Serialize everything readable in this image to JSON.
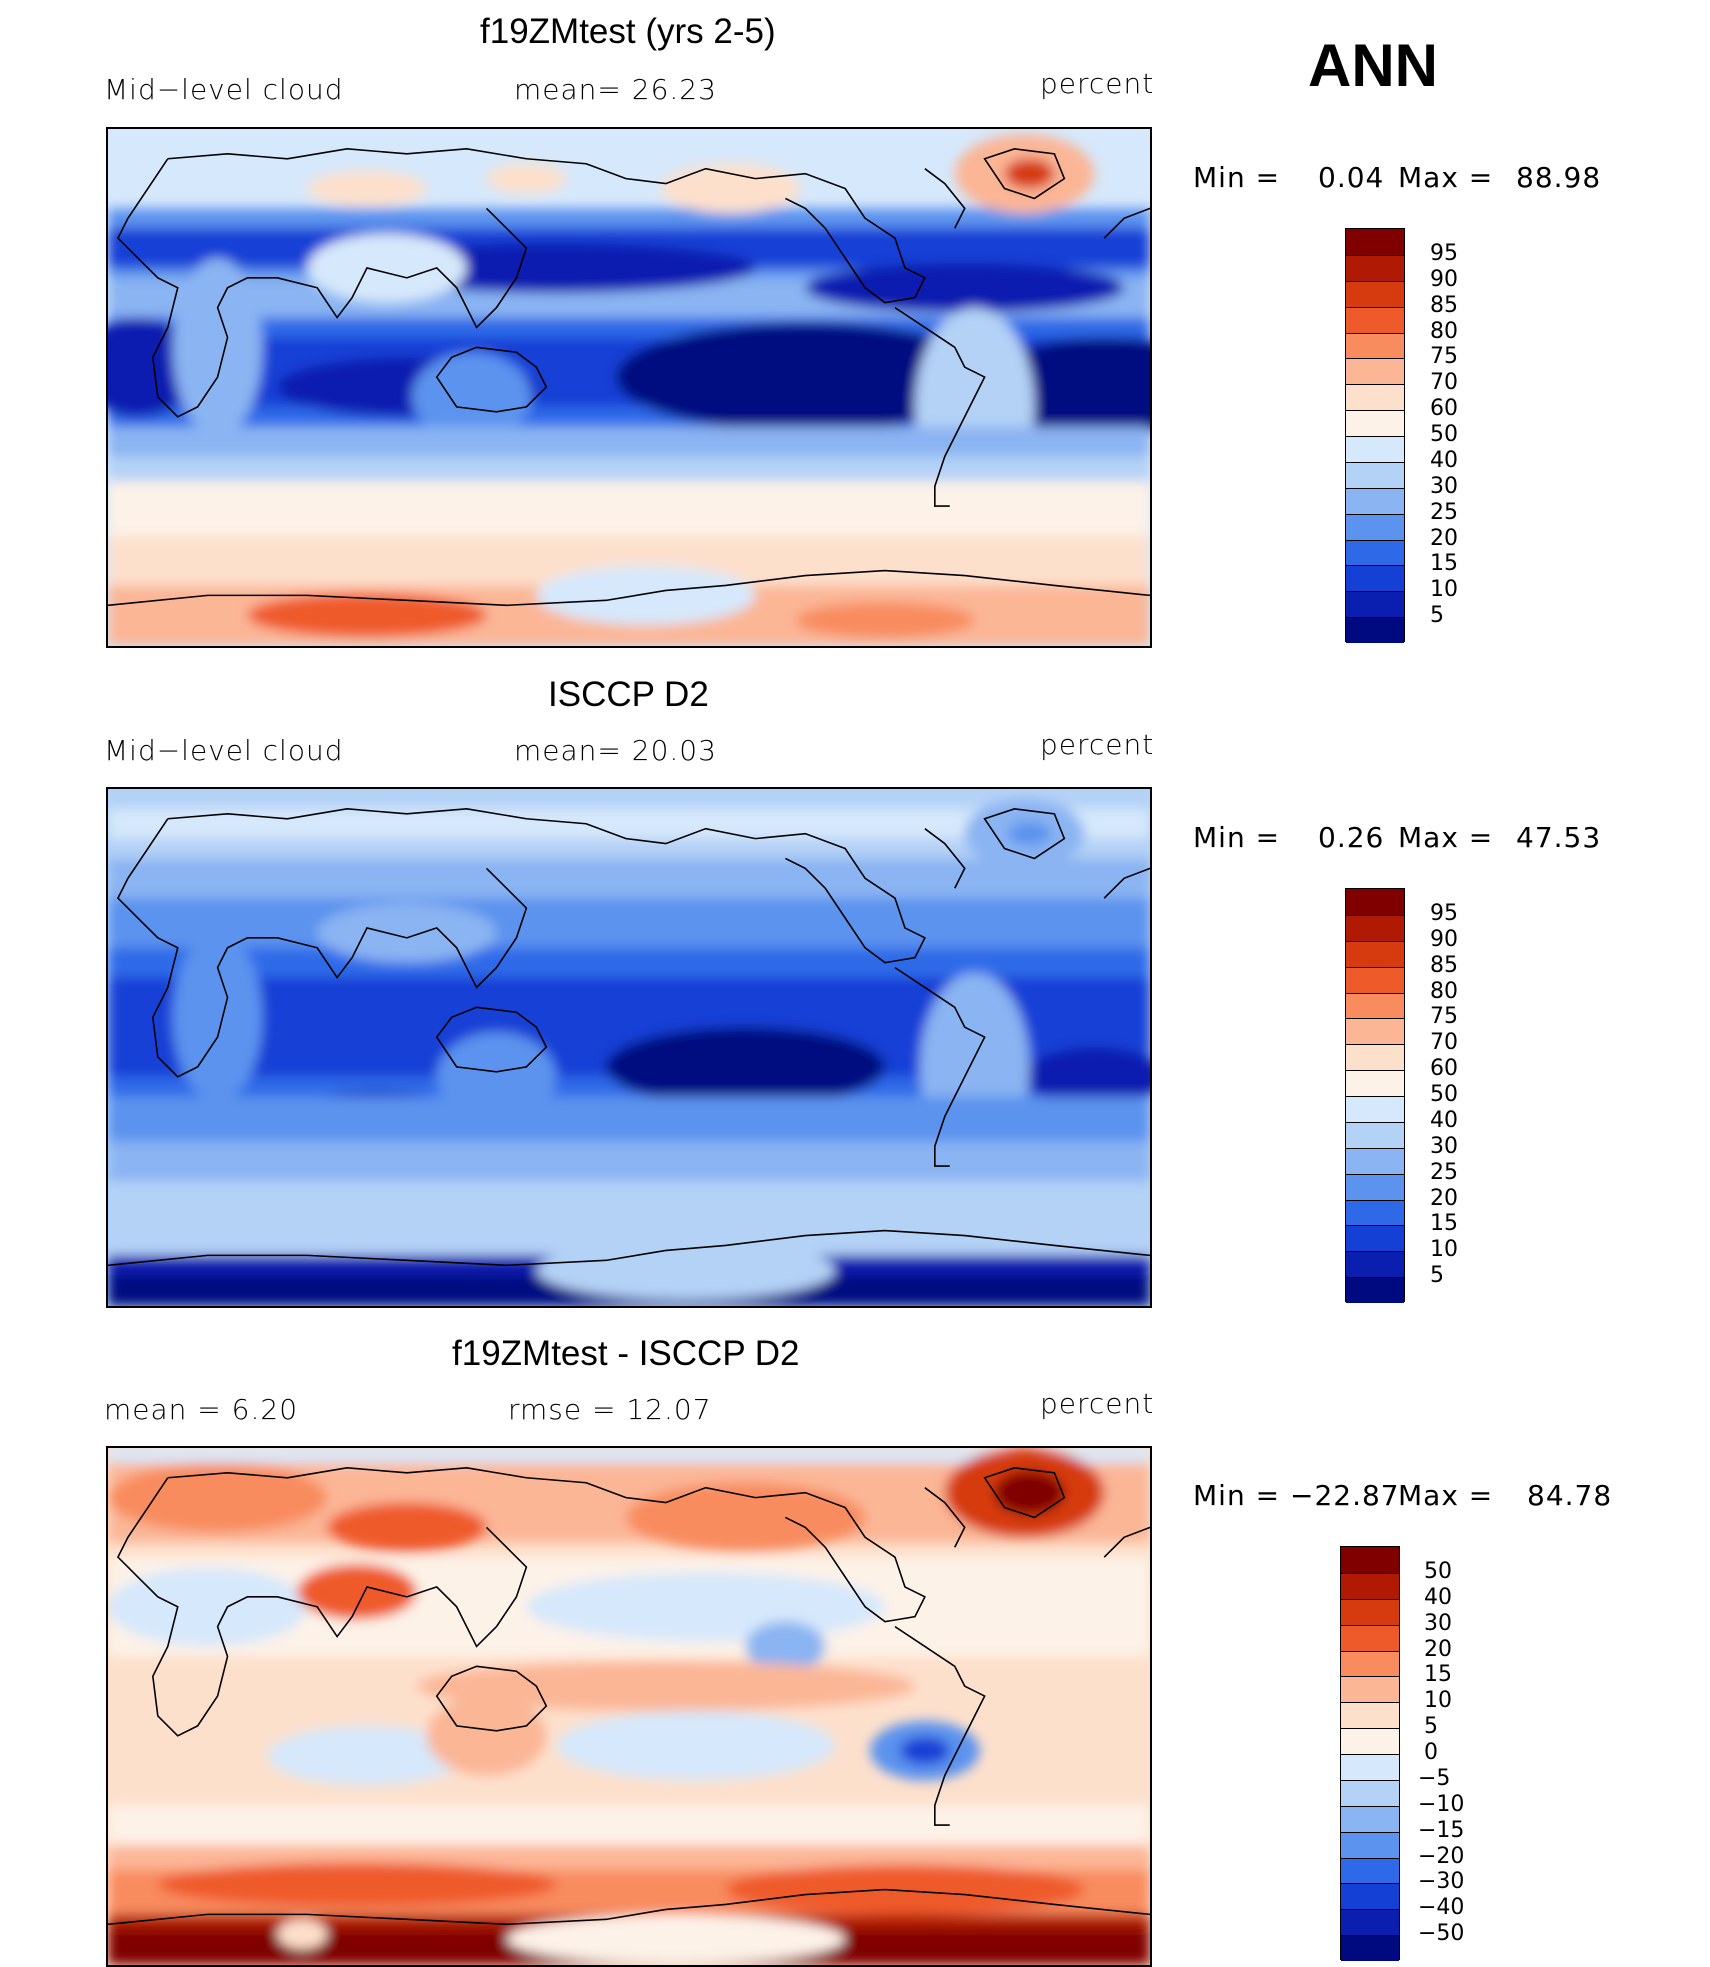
{
  "season": "ANN",
  "panels": [
    {
      "title": "f19ZMtest (yrs 2-5)",
      "left_label": "Mid−level cloud",
      "mid_label": "mean=   26.23",
      "units": "percent",
      "min_label": "Min  =",
      "min_value": "0.04",
      "max_label": "Max  =",
      "max_value": "88.98",
      "levels": [
        "95",
        "90",
        "85",
        "80",
        "75",
        "70",
        "60",
        "50",
        "40",
        "30",
        "25",
        "20",
        "15",
        "10",
        "5"
      ],
      "colors": [
        "#800000",
        "#b01a04",
        "#d63a0f",
        "#ef5a2a",
        "#f88c5e",
        "#fbb696",
        "#fde0cc",
        "#fdf2e8",
        "#d6e8fb",
        "#b4d1f6",
        "#8ab4f2",
        "#5c93ee",
        "#2e6ae8",
        "#1440d6",
        "#0a1fb0",
        "#000a80"
      ]
    },
    {
      "title": "ISCCP D2",
      "left_label": "Mid−level cloud",
      "mid_label": "mean=   20.03",
      "units": "percent",
      "min_label": "Min  =",
      "min_value": "0.26",
      "max_label": "Max  =",
      "max_value": "47.53",
      "levels": [
        "95",
        "90",
        "85",
        "80",
        "75",
        "70",
        "60",
        "50",
        "40",
        "30",
        "25",
        "20",
        "15",
        "10",
        "5"
      ],
      "colors": [
        "#800000",
        "#b01a04",
        "#d63a0f",
        "#ef5a2a",
        "#f88c5e",
        "#fbb696",
        "#fde0cc",
        "#fdf2e8",
        "#d6e8fb",
        "#b4d1f6",
        "#8ab4f2",
        "#5c93ee",
        "#2e6ae8",
        "#1440d6",
        "#0a1fb0",
        "#000a80"
      ]
    },
    {
      "title": "f19ZMtest - ISCCP D2",
      "left_label": "mean  =     6.20",
      "mid_label": "rmse  =    12.07",
      "units": "percent",
      "min_label": "Min  =",
      "min_value": "−22.87",
      "max_label": "Max  =",
      "max_value": "84.78",
      "levels": [
        "50",
        "40",
        "30",
        "20",
        "15",
        "10",
        "5",
        "0",
        "−5",
        "−10",
        "−15",
        "−20",
        "−30",
        "−40",
        "−50"
      ],
      "colors": [
        "#800000",
        "#b01a04",
        "#d63a0f",
        "#ef5a2a",
        "#f88c5e",
        "#fbb696",
        "#fde0cc",
        "#fdf2e8",
        "#d6e8fb",
        "#b4d1f6",
        "#8ab4f2",
        "#5c93ee",
        "#2e6ae8",
        "#1440d6",
        "#0a1fb0",
        "#000a80"
      ]
    }
  ]
}
